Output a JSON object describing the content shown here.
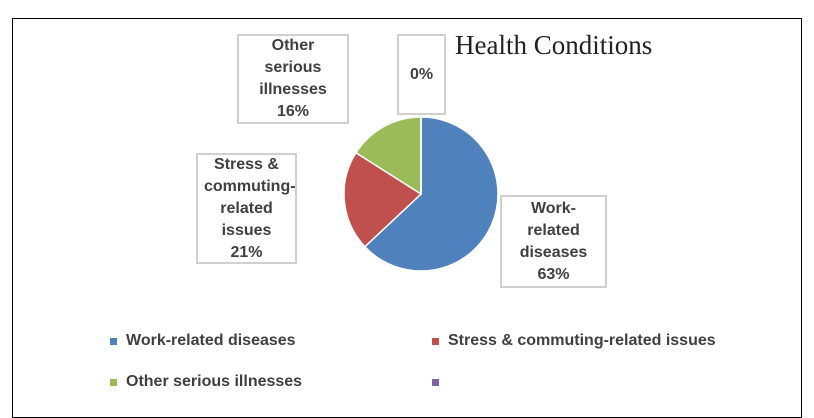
{
  "chart_data": {
    "type": "pie",
    "title": "Health Conditions",
    "categories": [
      "Work-related diseases",
      "Stress & commuting-related issues",
      "Other serious illnesses",
      null
    ],
    "values": [
      63,
      21,
      16,
      0
    ],
    "value_labels": [
      "63%",
      "21%",
      "16%",
      "0%"
    ],
    "colors": [
      "#4f81bd",
      "#c0504d",
      "#9bbb59",
      "#8064a2"
    ],
    "legend": "bottom"
  }
}
